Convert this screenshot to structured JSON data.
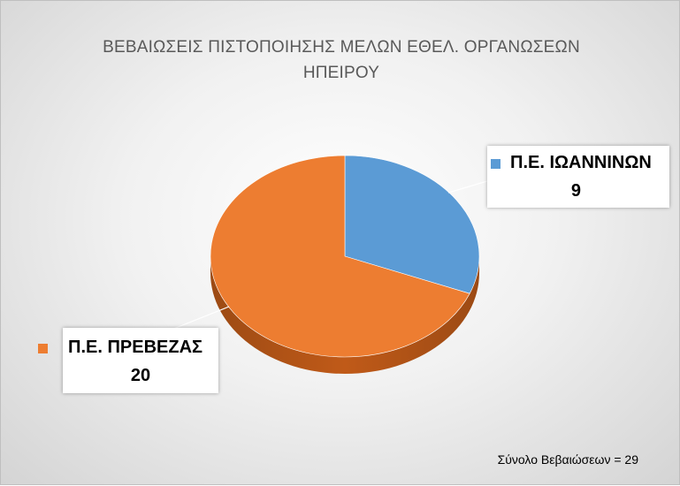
{
  "chart_data": {
    "type": "pie",
    "title": "ΒΕΒΑΙΩΣΕΙΣ ΠΙΣΤΟΠΟΙΗΣΗΣ ΜΕΛΩΝ ΕΘΕΛ. ΟΡΓΑΝΩΣΕΩΝ ΗΠΕΙΡΟΥ",
    "title_lines": [
      "ΒΕΒΑΙΩΣΕΙΣ ΠΙΣΤΟΠΟΙΗΣΗΣ ΜΕΛΩΝ ΕΘΕΛ. ΟΡΓΑΝΩΣΕΩΝ",
      "ΗΠΕΙΡΟΥ"
    ],
    "style": "3d",
    "slices": [
      {
        "label": "Π.Ε. ΙΩΑΝΝΙΝΩΝ",
        "value": 9,
        "color": "#5B9BD5"
      },
      {
        "label": "Π.Ε. ΠΡΕΒΕΖΑΣ",
        "value": 20,
        "color": "#ED7D31"
      }
    ],
    "data_labels": true,
    "legend": false
  },
  "footer": {
    "total_note": "Σύνολο Βεβαιώσεων = 29"
  }
}
